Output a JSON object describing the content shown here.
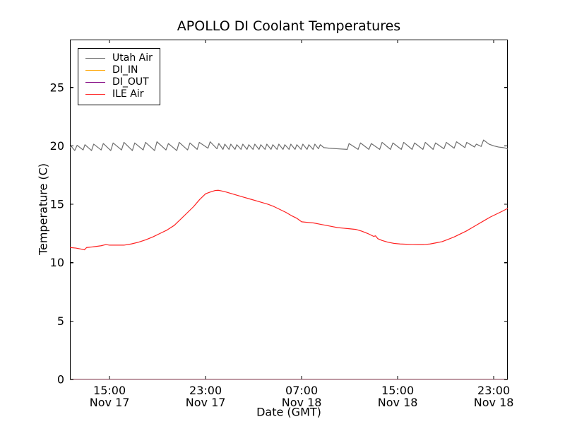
{
  "chart_data": {
    "type": "line",
    "title": "APOLLO DI Coolant Temperatures",
    "xlabel": "Date (GMT)",
    "ylabel": "Temperature (C)",
    "x_unit": "hours since Nov 17 00:00 GMT",
    "xlim": [
      11.7,
      48.17
    ],
    "ylim": [
      0,
      29.1
    ],
    "grid": false,
    "legend_position": "upper left",
    "y_ticks": [
      0,
      5,
      10,
      15,
      20,
      25
    ],
    "x_ticks": [
      {
        "pos": 15,
        "time": "15:00",
        "date": "Nov 17"
      },
      {
        "pos": 23,
        "time": "23:00",
        "date": "Nov 17"
      },
      {
        "pos": 31,
        "time": "07:00",
        "date": "Nov 18"
      },
      {
        "pos": 39,
        "time": "15:00",
        "date": "Nov 18"
      },
      {
        "pos": 47,
        "time": "23:00",
        "date": "Nov 18"
      }
    ],
    "series": [
      {
        "name": "Utah Air",
        "color": "#6e6e6e",
        "opacity": 1,
        "points": [
          [
            11.7,
            19.85
          ],
          [
            11.78,
            20.0
          ],
          [
            12.1,
            19.6
          ],
          [
            12.3,
            20.05
          ],
          [
            12.8,
            19.65
          ],
          [
            12.95,
            20.1
          ],
          [
            13.5,
            19.6
          ],
          [
            13.68,
            20.15
          ],
          [
            14.3,
            19.65
          ],
          [
            14.48,
            20.2
          ],
          [
            15.1,
            19.6
          ],
          [
            15.3,
            20.25
          ],
          [
            16.0,
            19.65
          ],
          [
            16.2,
            20.3
          ],
          [
            16.9,
            19.6
          ],
          [
            17.1,
            20.25
          ],
          [
            17.8,
            19.65
          ],
          [
            18.0,
            20.3
          ],
          [
            18.75,
            19.6
          ],
          [
            18.95,
            20.35
          ],
          [
            19.7,
            19.65
          ],
          [
            19.9,
            20.2
          ],
          [
            20.6,
            19.6
          ],
          [
            20.8,
            20.3
          ],
          [
            21.5,
            19.65
          ],
          [
            21.7,
            20.25
          ],
          [
            22.3,
            19.7
          ],
          [
            22.48,
            20.3
          ],
          [
            23.2,
            19.8
          ],
          [
            23.38,
            20.35
          ],
          [
            23.95,
            19.75
          ],
          [
            24.1,
            20.2
          ],
          [
            24.45,
            19.7
          ],
          [
            24.6,
            20.15
          ],
          [
            24.95,
            19.7
          ],
          [
            25.1,
            20.15
          ],
          [
            25.45,
            19.7
          ],
          [
            25.6,
            20.1
          ],
          [
            25.95,
            19.7
          ],
          [
            26.1,
            20.15
          ],
          [
            26.45,
            19.7
          ],
          [
            26.6,
            20.1
          ],
          [
            26.95,
            19.7
          ],
          [
            27.1,
            20.15
          ],
          [
            27.45,
            19.7
          ],
          [
            27.6,
            20.1
          ],
          [
            27.95,
            19.7
          ],
          [
            28.1,
            20.15
          ],
          [
            28.45,
            19.7
          ],
          [
            28.6,
            20.1
          ],
          [
            28.95,
            19.7
          ],
          [
            29.1,
            20.15
          ],
          [
            29.45,
            19.7
          ],
          [
            29.6,
            20.1
          ],
          [
            29.95,
            19.7
          ],
          [
            30.1,
            20.15
          ],
          [
            30.45,
            19.7
          ],
          [
            30.6,
            20.1
          ],
          [
            30.95,
            19.7
          ],
          [
            31.1,
            20.15
          ],
          [
            31.45,
            19.7
          ],
          [
            31.6,
            20.1
          ],
          [
            31.95,
            19.7
          ],
          [
            32.1,
            20.15
          ],
          [
            32.4,
            19.75
          ],
          [
            32.55,
            20.1
          ],
          [
            32.85,
            19.85
          ],
          [
            33.3,
            19.8
          ],
          [
            34.0,
            19.75
          ],
          [
            34.8,
            19.7
          ],
          [
            34.95,
            20.2
          ],
          [
            35.7,
            19.7
          ],
          [
            35.9,
            20.25
          ],
          [
            36.6,
            19.7
          ],
          [
            36.8,
            20.2
          ],
          [
            37.5,
            19.7
          ],
          [
            37.7,
            20.3
          ],
          [
            38.4,
            19.7
          ],
          [
            38.6,
            20.25
          ],
          [
            39.3,
            19.7
          ],
          [
            39.5,
            20.3
          ],
          [
            40.2,
            19.7
          ],
          [
            40.4,
            20.25
          ],
          [
            41.1,
            19.7
          ],
          [
            41.3,
            20.3
          ],
          [
            41.95,
            19.7
          ],
          [
            42.15,
            20.25
          ],
          [
            42.85,
            19.75
          ],
          [
            43.05,
            20.3
          ],
          [
            43.7,
            19.8
          ],
          [
            43.9,
            20.35
          ],
          [
            44.6,
            19.85
          ],
          [
            44.75,
            20.3
          ],
          [
            45.4,
            19.9
          ],
          [
            45.55,
            20.15
          ],
          [
            45.95,
            19.95
          ],
          [
            46.15,
            20.5
          ],
          [
            46.6,
            20.15
          ],
          [
            47.0,
            20.0
          ],
          [
            47.4,
            19.9
          ],
          [
            47.8,
            19.85
          ],
          [
            48.0,
            19.8
          ],
          [
            48.17,
            19.72
          ]
        ]
      },
      {
        "name": "DI_IN",
        "color": "#ffa500",
        "opacity": 1,
        "points": [
          [
            11.7,
            0
          ],
          [
            48.17,
            0
          ]
        ]
      },
      {
        "name": "DI_OUT",
        "color": "#800080",
        "opacity": 0.75,
        "points": [
          [
            11.7,
            0
          ],
          [
            48.17,
            0
          ]
        ]
      },
      {
        "name": "ILE Air",
        "color": "#ff2020",
        "opacity": 1,
        "points": [
          [
            11.7,
            11.3
          ],
          [
            12.2,
            11.25
          ],
          [
            12.7,
            11.15
          ],
          [
            12.9,
            11.1
          ],
          [
            13.1,
            11.3
          ],
          [
            13.6,
            11.35
          ],
          [
            14.3,
            11.45
          ],
          [
            14.7,
            11.55
          ],
          [
            15.0,
            11.5
          ],
          [
            15.6,
            11.5
          ],
          [
            16.2,
            11.5
          ],
          [
            16.8,
            11.6
          ],
          [
            17.4,
            11.75
          ],
          [
            18.0,
            11.95
          ],
          [
            18.6,
            12.2
          ],
          [
            19.2,
            12.5
          ],
          [
            19.8,
            12.8
          ],
          [
            20.4,
            13.2
          ],
          [
            21.0,
            13.8
          ],
          [
            21.5,
            14.3
          ],
          [
            22.0,
            14.8
          ],
          [
            22.5,
            15.4
          ],
          [
            23.0,
            15.9
          ],
          [
            23.4,
            16.05
          ],
          [
            23.8,
            16.18
          ],
          [
            24.05,
            16.2
          ],
          [
            24.3,
            16.15
          ],
          [
            24.7,
            16.05
          ],
          [
            25.2,
            15.9
          ],
          [
            25.7,
            15.75
          ],
          [
            26.2,
            15.6
          ],
          [
            26.7,
            15.45
          ],
          [
            27.2,
            15.3
          ],
          [
            27.7,
            15.15
          ],
          [
            28.2,
            15.0
          ],
          [
            28.7,
            14.8
          ],
          [
            29.2,
            14.55
          ],
          [
            29.7,
            14.3
          ],
          [
            30.2,
            14.0
          ],
          [
            30.6,
            13.8
          ],
          [
            31.0,
            13.5
          ],
          [
            31.5,
            13.45
          ],
          [
            32.0,
            13.4
          ],
          [
            32.5,
            13.3
          ],
          [
            33.0,
            13.2
          ],
          [
            33.5,
            13.1
          ],
          [
            34.0,
            13.0
          ],
          [
            34.5,
            12.95
          ],
          [
            35.0,
            12.9
          ],
          [
            35.5,
            12.85
          ],
          [
            36.0,
            12.7
          ],
          [
            36.5,
            12.5
          ],
          [
            37.0,
            12.25
          ],
          [
            37.15,
            12.3
          ],
          [
            37.35,
            12.05
          ],
          [
            37.7,
            11.9
          ],
          [
            38.2,
            11.75
          ],
          [
            38.7,
            11.65
          ],
          [
            39.2,
            11.6
          ],
          [
            39.7,
            11.58
          ],
          [
            40.2,
            11.56
          ],
          [
            40.7,
            11.55
          ],
          [
            41.2,
            11.55
          ],
          [
            41.7,
            11.6
          ],
          [
            42.2,
            11.7
          ],
          [
            42.7,
            11.8
          ],
          [
            43.2,
            12.0
          ],
          [
            43.7,
            12.2
          ],
          [
            44.2,
            12.45
          ],
          [
            44.7,
            12.7
          ],
          [
            45.2,
            13.0
          ],
          [
            45.7,
            13.3
          ],
          [
            46.2,
            13.6
          ],
          [
            46.7,
            13.9
          ],
          [
            47.2,
            14.15
          ],
          [
            47.7,
            14.4
          ],
          [
            48.17,
            14.65
          ]
        ]
      }
    ]
  }
}
